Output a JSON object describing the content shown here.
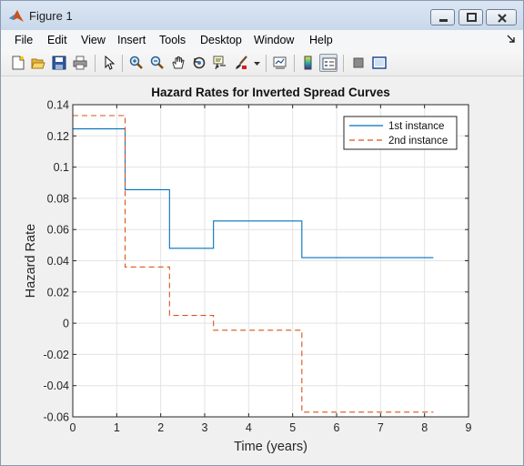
{
  "window": {
    "title": "Figure 1",
    "menu": [
      "File",
      "Edit",
      "View",
      "Insert",
      "Tools",
      "Desktop",
      "Window",
      "Help"
    ]
  },
  "toolbar": {
    "icons": [
      "new-figure-icon",
      "open-file-icon",
      "save-icon",
      "print-icon",
      "edit-plot-icon",
      "zoom-in-icon",
      "zoom-out-icon",
      "pan-icon",
      "rotate-3d-icon",
      "data-cursor-icon",
      "brush-icon",
      "link-plot-icon",
      "insert-colorbar-icon",
      "insert-legend-icon",
      "hide-plot-tools-icon",
      "show-plot-tools-icon"
    ]
  },
  "chart_data": {
    "type": "line",
    "title": "Hazard Rates for Inverted Spread Curves",
    "xlabel": "Time (years)",
    "ylabel": "Hazard Rate",
    "xlim": [
      0,
      9
    ],
    "ylim": [
      -0.06,
      0.14
    ],
    "xticks": [
      0,
      1,
      2,
      3,
      4,
      5,
      6,
      7,
      8,
      9
    ],
    "yticks": [
      -0.06,
      -0.04,
      -0.02,
      0,
      0.02,
      0.04,
      0.06,
      0.08,
      0.1,
      0.12,
      0.14
    ],
    "xtick_labels": [
      "0",
      "1",
      "2",
      "3",
      "4",
      "5",
      "6",
      "7",
      "8",
      "9"
    ],
    "ytick_labels": [
      "-0.06",
      "-0.04",
      "-0.02",
      "0",
      "0.02",
      "0.04",
      "0.06",
      "0.08",
      "0.1",
      "0.12",
      "0.14"
    ],
    "grid": true,
    "legend_position": "top-right",
    "series": [
      {
        "name": "1st instance",
        "style": "solid",
        "color": "#0072bd",
        "steps": [
          {
            "x0": 0,
            "x1": 1.19,
            "y": 0.1245
          },
          {
            "x0": 1.19,
            "x1": 2.2,
            "y": 0.0855
          },
          {
            "x0": 2.2,
            "x1": 3.2,
            "y": 0.048
          },
          {
            "x0": 3.2,
            "x1": 5.21,
            "y": 0.0655
          },
          {
            "x0": 5.21,
            "x1": 8.2,
            "y": 0.042
          }
        ]
      },
      {
        "name": "2nd instance",
        "style": "dashed",
        "color": "#d95319",
        "steps": [
          {
            "x0": 0,
            "x1": 1.19,
            "y": 0.133
          },
          {
            "x0": 1.19,
            "x1": 2.2,
            "y": 0.036
          },
          {
            "x0": 2.2,
            "x1": 3.2,
            "y": 0.005
          },
          {
            "x0": 3.2,
            "x1": 5.21,
            "y": -0.0045
          },
          {
            "x0": 5.21,
            "x1": 8.2,
            "y": -0.057
          }
        ]
      }
    ]
  }
}
